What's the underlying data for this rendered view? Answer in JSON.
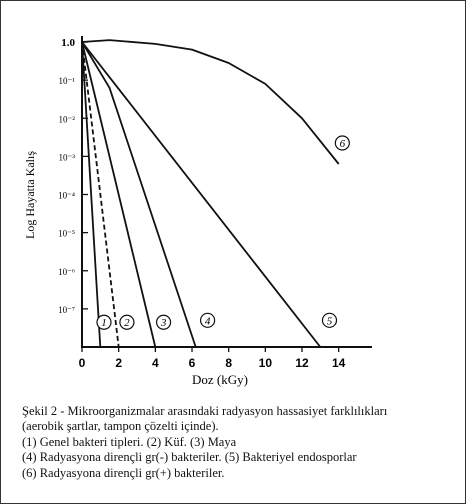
{
  "chart_data": {
    "type": "line",
    "xlabel": "Doz (kGy)",
    "ylabel": "Log Hayatta Kalış",
    "x_ticks": [
      "0",
      "2",
      "4",
      "6",
      "8",
      "10",
      "12",
      "14"
    ],
    "y_ticks": [
      "1.0",
      "10⁻¹",
      "10⁻²",
      "10⁻³",
      "10⁻⁴",
      "10⁻⁵",
      "10⁻⁶",
      "10⁻⁷"
    ],
    "xlim": [
      0,
      15
    ],
    "ylim_log10": [
      -8,
      0
    ],
    "grid": false,
    "series": [
      {
        "name": "1",
        "style": "solid",
        "points": [
          [
            0,
            0
          ],
          [
            1.0,
            -8
          ]
        ]
      },
      {
        "name": "2",
        "style": "dashed",
        "points": [
          [
            0,
            0
          ],
          [
            0.5,
            -2
          ],
          [
            2.0,
            -8
          ]
        ]
      },
      {
        "name": "3",
        "style": "solid",
        "points": [
          [
            0,
            0
          ],
          [
            4.0,
            -8
          ]
        ]
      },
      {
        "name": "4",
        "style": "solid",
        "points": [
          [
            0,
            0
          ],
          [
            1.5,
            -1.2
          ],
          [
            6.2,
            -8
          ]
        ]
      },
      {
        "name": "5",
        "style": "solid",
        "points": [
          [
            0,
            0
          ],
          [
            13.0,
            -8
          ]
        ]
      },
      {
        "name": "6",
        "style": "solid",
        "points": [
          [
            0,
            0
          ],
          [
            1.5,
            0.05
          ],
          [
            4.0,
            -0.05
          ],
          [
            6.0,
            -0.2
          ],
          [
            8.0,
            -0.55
          ],
          [
            10.0,
            -1.1
          ],
          [
            12.0,
            -2.0
          ],
          [
            14.0,
            -3.2
          ]
        ]
      }
    ]
  },
  "caption": {
    "line1": "Şekil 2 - Mikroorganizmalar arasındaki radyasyon hassasiyet farklılıkları",
    "line2": "(aerobik şartlar, tampon çözelti içinde).",
    "line3": "(1) Genel bakteri tipleri. (2) Küf.  (3) Maya",
    "line4": "(4) Radyasyona dirençli gr(-) bakteriler. (5) Bakteriyel endosporlar",
    "line5": "(6) Radyasyona dirençli gr(+) bakteriler."
  }
}
